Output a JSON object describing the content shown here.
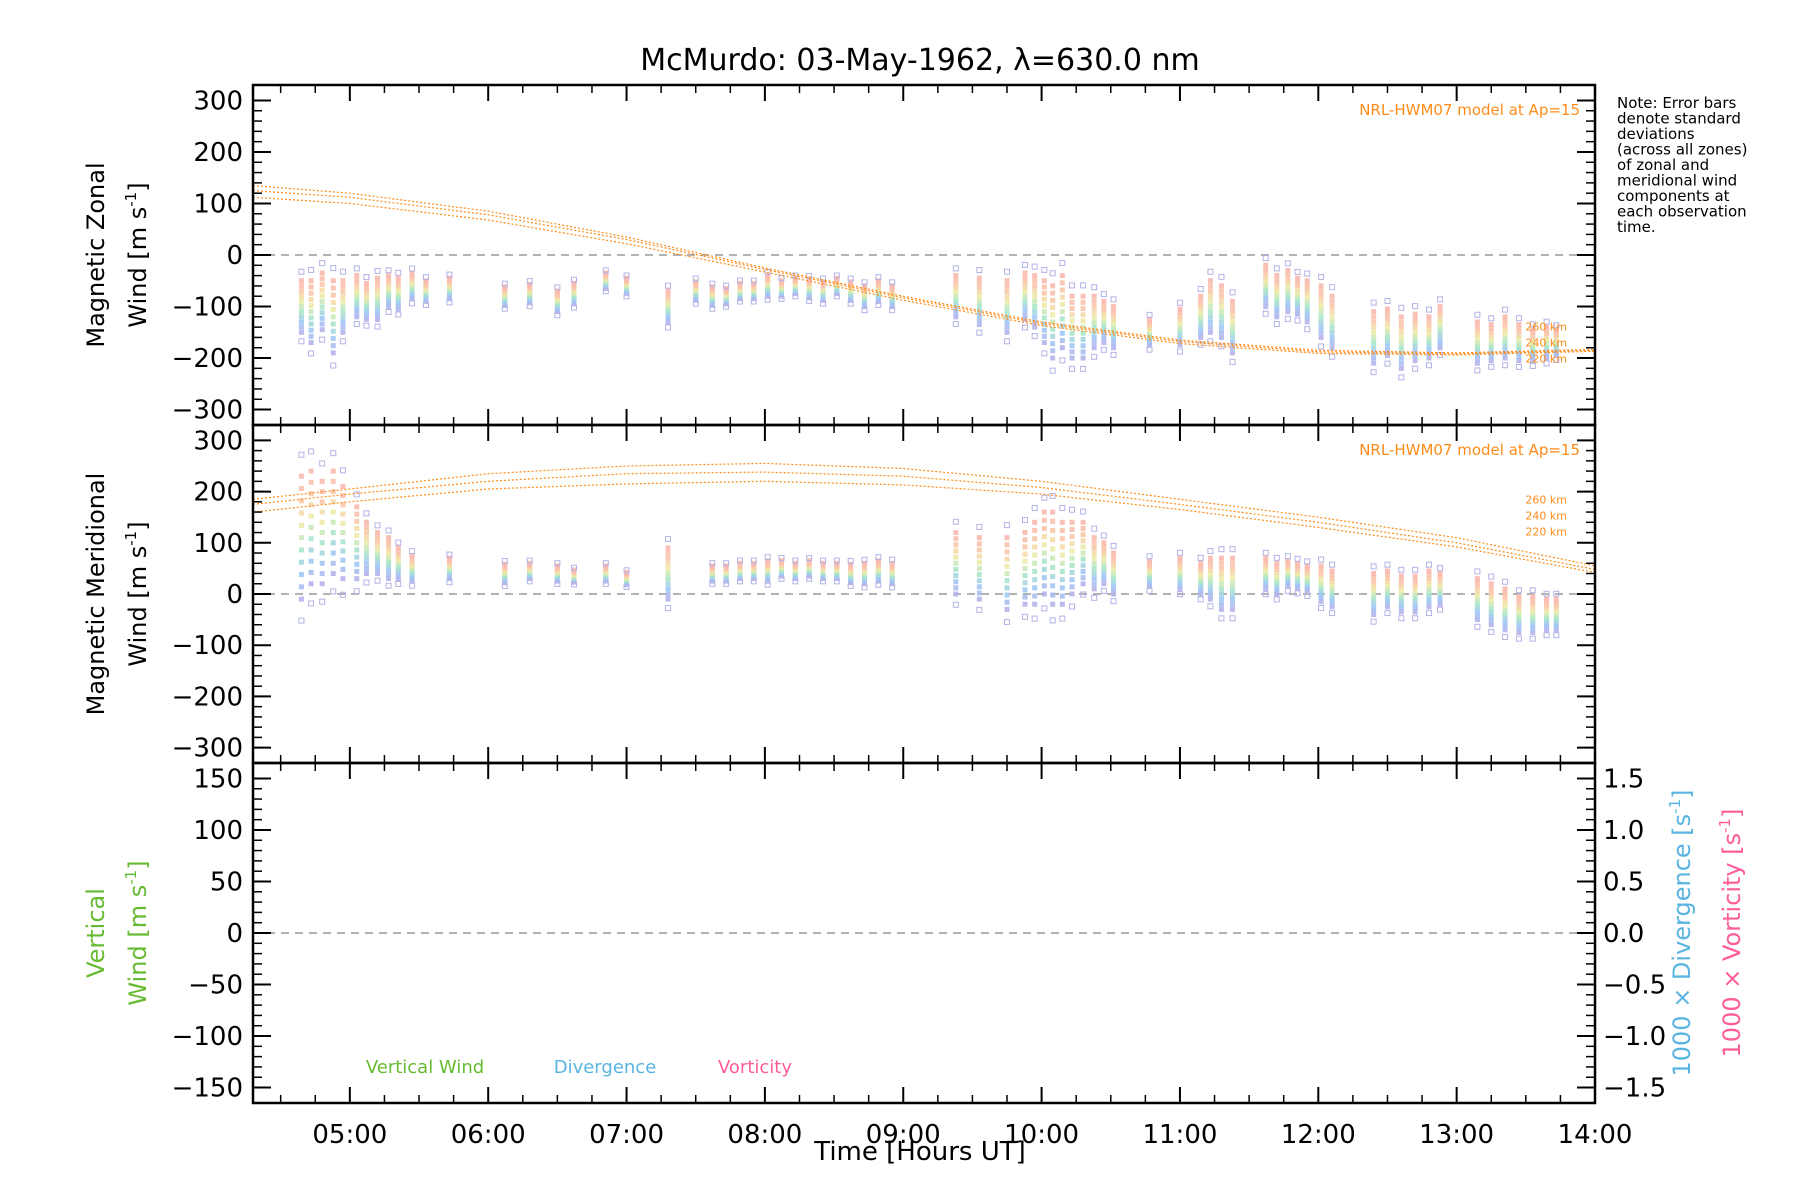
{
  "chart_data": {
    "type": "scatter",
    "title": "McMurdo: 03-May-1962, λ=630.0 nm",
    "xlabel": "Time [Hours UT]",
    "xlim": [
      4.3,
      14.0
    ],
    "x_ticks": [
      5,
      6,
      7,
      8,
      9,
      10,
      11,
      12,
      13,
      14
    ],
    "x_tick_labels": [
      "05:00",
      "06:00",
      "07:00",
      "08:00",
      "09:00",
      "10:00",
      "11:00",
      "12:00",
      "13:00",
      "14:00"
    ],
    "note": [
      "Note: Error bars",
      "denote standard",
      "deviations",
      "(across all zones)",
      "of zonal and",
      "meridional wind",
      "components at",
      "each observation",
      "time."
    ],
    "colors": {
      "model": "#ff8c1a",
      "vertical": "#66bb33",
      "divergence": "#5ab4e0",
      "vorticity": "#ff5c9a",
      "zero_line": "#999999",
      "error_bar": "#b3b3e6"
    },
    "panels": [
      {
        "id": "zonal",
        "ylabel_line1": "Magnetic Zonal",
        "ylabel_line2": "Wind [m s",
        "ylabel_sup": "-1",
        "ylabel_close": "]",
        "ylim": [
          -330,
          330
        ],
        "y_ticks": [
          -300,
          -200,
          -100,
          0,
          100,
          200,
          300
        ],
        "y_tick_labels": [
          "−300",
          "−200",
          "−100",
          "0",
          "100",
          "200",
          "300"
        ],
        "model_label": "NRL-HWM07 model at Ap=15",
        "altitude_labels": [
          "260 km",
          "240 km",
          "220 km"
        ],
        "model": {
          "x": [
            4.3,
            5.0,
            6.0,
            7.0,
            8.0,
            9.0,
            10.0,
            11.0,
            12.0,
            13.0,
            14.0
          ],
          "y_260": [
            135,
            120,
            85,
            35,
            -25,
            -80,
            -130,
            -165,
            -185,
            -190,
            -183
          ],
          "y_240": [
            125,
            112,
            78,
            30,
            -28,
            -83,
            -133,
            -168,
            -188,
            -192,
            -185
          ],
          "y_220": [
            112,
            100,
            68,
            22,
            -33,
            -88,
            -137,
            -172,
            -191,
            -194,
            -187
          ]
        },
        "observations": [
          [
            4.65,
            -100,
            50
          ],
          [
            4.72,
            -110,
            60
          ],
          [
            4.8,
            -90,
            55
          ],
          [
            4.88,
            -120,
            70
          ],
          [
            4.95,
            -100,
            50
          ],
          [
            5.05,
            -80,
            40
          ],
          [
            5.12,
            -90,
            35
          ],
          [
            5.2,
            -85,
            40
          ],
          [
            5.28,
            -70,
            30
          ],
          [
            5.35,
            -75,
            30
          ],
          [
            5.45,
            -60,
            25
          ],
          [
            5.55,
            -70,
            20
          ],
          [
            5.72,
            -65,
            20
          ],
          [
            6.12,
            -80,
            18
          ],
          [
            6.3,
            -75,
            18
          ],
          [
            6.5,
            -90,
            20
          ],
          [
            6.62,
            -75,
            20
          ],
          [
            6.85,
            -50,
            15
          ],
          [
            7.0,
            -60,
            15
          ],
          [
            7.3,
            -100,
            30
          ],
          [
            7.5,
            -70,
            18
          ],
          [
            7.62,
            -80,
            18
          ],
          [
            7.72,
            -80,
            15
          ],
          [
            7.82,
            -70,
            15
          ],
          [
            7.92,
            -70,
            15
          ],
          [
            8.02,
            -60,
            20
          ],
          [
            8.12,
            -65,
            15
          ],
          [
            8.22,
            -60,
            15
          ],
          [
            8.32,
            -65,
            18
          ],
          [
            8.42,
            -70,
            18
          ],
          [
            8.52,
            -60,
            15
          ],
          [
            8.62,
            -70,
            18
          ],
          [
            8.72,
            -80,
            20
          ],
          [
            8.82,
            -70,
            20
          ],
          [
            8.92,
            -80,
            20
          ],
          [
            9.38,
            -80,
            40
          ],
          [
            9.55,
            -90,
            45
          ],
          [
            9.75,
            -100,
            50
          ],
          [
            9.88,
            -80,
            45
          ],
          [
            9.95,
            -90,
            50
          ],
          [
            10.02,
            -110,
            60
          ],
          [
            10.08,
            -130,
            70
          ],
          [
            10.15,
            -110,
            70
          ],
          [
            10.22,
            -140,
            60
          ],
          [
            10.3,
            -140,
            60
          ],
          [
            10.38,
            -130,
            50
          ],
          [
            10.45,
            -130,
            40
          ],
          [
            10.52,
            -140,
            40
          ],
          [
            10.78,
            -150,
            25
          ],
          [
            11.0,
            -140,
            35
          ],
          [
            11.15,
            -120,
            40
          ],
          [
            11.22,
            -100,
            50
          ],
          [
            11.3,
            -110,
            50
          ],
          [
            11.38,
            -140,
            50
          ],
          [
            11.62,
            -60,
            40
          ],
          [
            11.7,
            -80,
            40
          ],
          [
            11.78,
            -70,
            40
          ],
          [
            11.85,
            -80,
            35
          ],
          [
            11.92,
            -90,
            40
          ],
          [
            12.02,
            -110,
            50
          ],
          [
            12.1,
            -130,
            50
          ],
          [
            12.4,
            -160,
            50
          ],
          [
            12.5,
            -150,
            45
          ],
          [
            12.6,
            -170,
            50
          ],
          [
            12.7,
            -160,
            45
          ],
          [
            12.8,
            -160,
            40
          ],
          [
            12.88,
            -140,
            40
          ],
          [
            13.15,
            -170,
            40
          ],
          [
            13.25,
            -170,
            35
          ],
          [
            13.35,
            -160,
            40
          ],
          [
            13.45,
            -170,
            35
          ],
          [
            13.55,
            -175,
            30
          ],
          [
            13.65,
            -170,
            30
          ],
          [
            13.72,
            -170,
            25
          ]
        ]
      },
      {
        "id": "meridional",
        "ylabel_line1": "Magnetic Meridional",
        "ylabel_line2": "Wind [m s",
        "ylabel_sup": "-1",
        "ylabel_close": "]",
        "ylim": [
          -330,
          330
        ],
        "y_ticks": [
          -300,
          -200,
          -100,
          0,
          100,
          200,
          300
        ],
        "y_tick_labels": [
          "−300",
          "−200",
          "−100",
          "0",
          "100",
          "200",
          "300"
        ],
        "model_label": "NRL-HWM07 model at Ap=15",
        "altitude_labels": [
          "260 km",
          "240 km",
          "220 km"
        ],
        "model": {
          "x": [
            4.3,
            5.0,
            6.0,
            7.0,
            8.0,
            9.0,
            10.0,
            11.0,
            12.0,
            13.0,
            14.0
          ],
          "y_260": [
            185,
            205,
            235,
            250,
            255,
            245,
            220,
            185,
            150,
            110,
            55
          ],
          "y_240": [
            175,
            195,
            220,
            235,
            238,
            230,
            208,
            175,
            140,
            100,
            48
          ],
          "y_220": [
            160,
            180,
            205,
            215,
            220,
            213,
            195,
            165,
            130,
            92,
            42
          ]
        },
        "observations": [
          [
            4.65,
            110,
            120
          ],
          [
            4.72,
            130,
            110
          ],
          [
            4.8,
            120,
            100
          ],
          [
            4.88,
            140,
            100
          ],
          [
            4.95,
            120,
            90
          ],
          [
            5.05,
            100,
            70
          ],
          [
            5.12,
            90,
            50
          ],
          [
            5.2,
            80,
            40
          ],
          [
            5.28,
            70,
            40
          ],
          [
            5.35,
            60,
            30
          ],
          [
            5.45,
            50,
            25
          ],
          [
            5.72,
            50,
            20
          ],
          [
            6.12,
            40,
            18
          ],
          [
            6.3,
            45,
            15
          ],
          [
            6.5,
            40,
            15
          ],
          [
            6.62,
            35,
            12
          ],
          [
            6.85,
            40,
            15
          ],
          [
            7.0,
            30,
            12
          ],
          [
            7.3,
            40,
            50
          ],
          [
            7.62,
            40,
            15
          ],
          [
            7.72,
            40,
            15
          ],
          [
            7.82,
            45,
            15
          ],
          [
            7.92,
            45,
            15
          ],
          [
            8.02,
            45,
            20
          ],
          [
            8.12,
            50,
            15
          ],
          [
            8.22,
            45,
            15
          ],
          [
            8.32,
            50,
            15
          ],
          [
            8.42,
            45,
            15
          ],
          [
            8.52,
            45,
            15
          ],
          [
            8.62,
            40,
            18
          ],
          [
            8.72,
            40,
            20
          ],
          [
            8.82,
            45,
            20
          ],
          [
            8.92,
            40,
            20
          ],
          [
            9.38,
            60,
            60
          ],
          [
            9.55,
            50,
            60
          ],
          [
            9.75,
            40,
            70
          ],
          [
            9.88,
            50,
            70
          ],
          [
            9.95,
            60,
            80
          ],
          [
            10.02,
            80,
            80
          ],
          [
            10.08,
            70,
            90
          ],
          [
            10.15,
            60,
            80
          ],
          [
            10.22,
            70,
            70
          ],
          [
            10.3,
            80,
            60
          ],
          [
            10.38,
            60,
            50
          ],
          [
            10.45,
            60,
            40
          ],
          [
            10.52,
            40,
            40
          ],
          [
            10.78,
            40,
            25
          ],
          [
            11.0,
            40,
            30
          ],
          [
            11.15,
            30,
            30
          ],
          [
            11.22,
            30,
            40
          ],
          [
            11.3,
            20,
            50
          ],
          [
            11.38,
            20,
            50
          ],
          [
            11.62,
            40,
            30
          ],
          [
            11.7,
            30,
            30
          ],
          [
            11.78,
            40,
            25
          ],
          [
            11.85,
            35,
            25
          ],
          [
            11.92,
            30,
            25
          ],
          [
            12.02,
            20,
            35
          ],
          [
            12.1,
            10,
            35
          ],
          [
            12.4,
            0,
            40
          ],
          [
            12.5,
            10,
            35
          ],
          [
            12.6,
            0,
            35
          ],
          [
            12.7,
            0,
            35
          ],
          [
            12.8,
            10,
            35
          ],
          [
            12.88,
            10,
            30
          ],
          [
            13.15,
            -10,
            40
          ],
          [
            13.25,
            -20,
            40
          ],
          [
            13.35,
            -30,
            40
          ],
          [
            13.45,
            -40,
            35
          ],
          [
            13.55,
            -40,
            35
          ],
          [
            13.65,
            -40,
            30
          ],
          [
            13.72,
            -40,
            30
          ]
        ]
      },
      {
        "id": "vertical",
        "ylabel_line1": "Vertical",
        "ylabel_line2": "Wind [m s",
        "ylabel_sup": "-1",
        "ylabel_close": "]",
        "ylim": [
          -165,
          165
        ],
        "y_ticks": [
          -150,
          -100,
          -50,
          0,
          50,
          100,
          150
        ],
        "y_tick_labels": [
          "−150",
          "−100",
          "−50",
          "0",
          "50",
          "100",
          "150"
        ],
        "right_axis": {
          "ylim": [
            -1.65,
            1.65
          ],
          "y_ticks": [
            -1.5,
            -1.0,
            -0.5,
            0.0,
            0.5,
            1.0,
            1.5
          ],
          "y_tick_labels": [
            "−1.5",
            "−1.0",
            "−0.5",
            "0.0",
            "0.5",
            "1.0",
            "1.5"
          ],
          "label_divergence": "1000 × Divergence [s",
          "label_vorticity": "1000 × Vorticity [s",
          "label_sup": "-1",
          "label_close": "]"
        },
        "legend": [
          "Vertical Wind",
          "Divergence",
          "Vorticity"
        ]
      }
    ]
  }
}
